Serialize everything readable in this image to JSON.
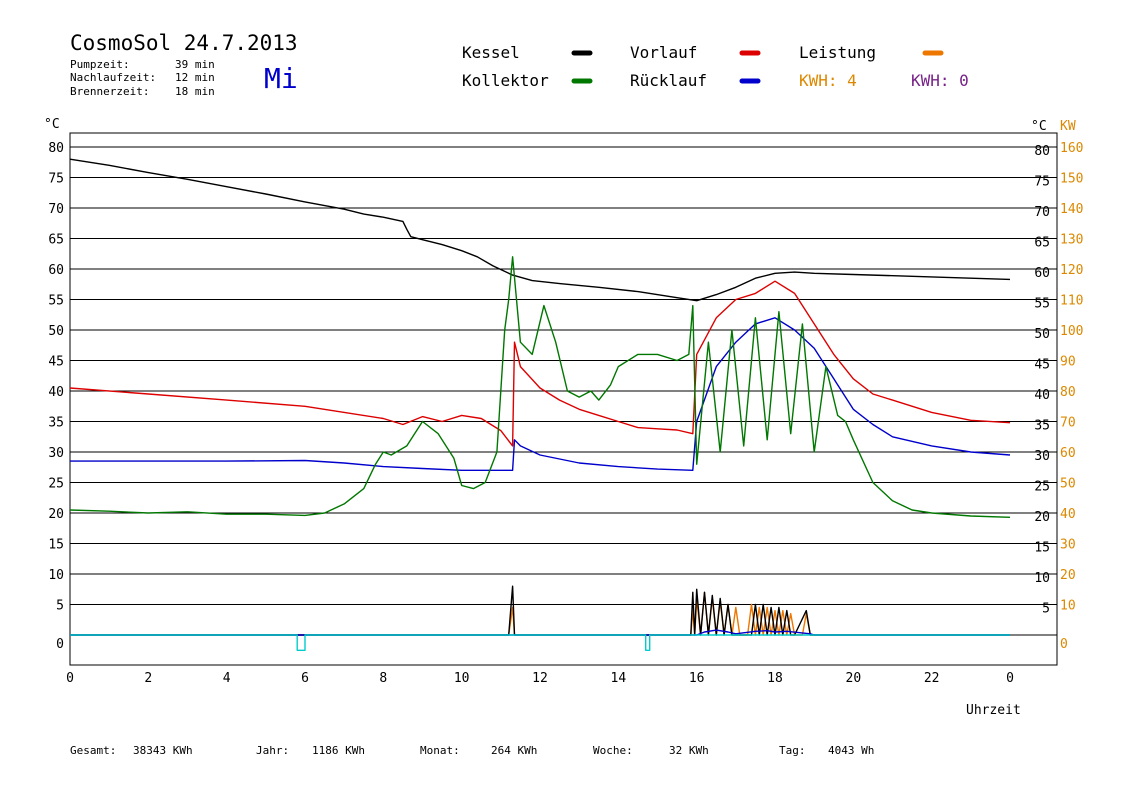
{
  "header": {
    "title": "CosmoSol 24.7.2013",
    "weekday": "Mi",
    "stats": [
      {
        "label": "Pumpzeit:",
        "value": "39 min"
      },
      {
        "label": "Nachlaufzeit:",
        "value": "12 min"
      },
      {
        "label": "Brennerzeit:",
        "value": "18 min"
      }
    ]
  },
  "legend": {
    "items": [
      {
        "label": "Kessel",
        "color": "#000000"
      },
      {
        "label": "Vorlauf",
        "color": "#dd0000"
      },
      {
        "label": "Leistung",
        "color": "#ee7700"
      },
      {
        "label": "Kollektor",
        "color": "#007700"
      },
      {
        "label": "Rücklauf",
        "color": "#0000cc"
      }
    ],
    "kwh": [
      {
        "text": "KWH: 4",
        "color": "#dd8800"
      },
      {
        "text": "KWH: 0",
        "color": "#772288"
      }
    ]
  },
  "footer": [
    {
      "label": "Gesamt:",
      "value": "38343 KWh"
    },
    {
      "label": "Jahr:",
      "value": "1186 KWh"
    },
    {
      "label": "Monat:",
      "value": "264 KWh"
    },
    {
      "label": "Woche:",
      "value": "32 KWh"
    },
    {
      "label": "Tag:",
      "value": "4043 Wh"
    }
  ],
  "chart_data": {
    "type": "line",
    "xlabel": "Uhrzeit",
    "xlim": [
      0,
      24
    ],
    "xticks": [
      "0",
      "2",
      "4",
      "6",
      "8",
      "10",
      "12",
      "14",
      "16",
      "18",
      "20",
      "22",
      "0"
    ],
    "ylabel_left": "°C",
    "ylabel_right": "°C",
    "ylabel_right2": "KW",
    "ylim": [
      -5,
      85
    ],
    "yticks_left": [
      "80",
      "75",
      "70",
      "65",
      "60",
      "55",
      "50",
      "45",
      "40",
      "35",
      "30",
      "25",
      "20",
      "15",
      "10",
      "5",
      "0"
    ],
    "yticks_right": [
      "80",
      "75",
      "70",
      "65",
      "60",
      "55",
      "50",
      "45",
      "40",
      "35",
      "30",
      "25",
      "20",
      "15",
      "10",
      "5"
    ],
    "yticks_right2": [
      "160",
      "150",
      "140",
      "130",
      "120",
      "110",
      "100",
      "90",
      "80",
      "70",
      "60",
      "50",
      "40",
      "30",
      "20",
      "10",
      "0"
    ],
    "grid": true,
    "series": [
      {
        "name": "Kessel",
        "color": "#000000",
        "x": [
          0,
          1,
          2,
          3,
          4,
          5,
          6,
          7,
          7.5,
          8,
          8.5,
          8.6,
          8.7,
          9,
          9.5,
          10,
          10.4,
          10.8,
          11.3,
          11.8,
          12.5,
          13.5,
          14.5,
          15.5,
          16,
          16.5,
          17,
          17.5,
          18,
          18.5,
          19,
          20,
          22,
          24
        ],
        "y": [
          78,
          77,
          75.8,
          74.7,
          73.5,
          72.3,
          71,
          69.8,
          69,
          68.5,
          67.8,
          66.5,
          65.3,
          64.8,
          64,
          63,
          62,
          60.5,
          59,
          58.1,
          57.6,
          57,
          56.3,
          55.3,
          54.8,
          55.8,
          57,
          58.5,
          59.3,
          59.5,
          59.3,
          59.1,
          58.7,
          58.3
        ]
      },
      {
        "name": "Vorlauf",
        "color": "#dd0000",
        "x": [
          0,
          2,
          4,
          6,
          8,
          8.5,
          9,
          9.5,
          10,
          10.5,
          11,
          11.3,
          11.35,
          11.5,
          12,
          12.5,
          13,
          13.5,
          14,
          14.5,
          15,
          15.5,
          15.9,
          16,
          16.5,
          17,
          17.5,
          18,
          18.5,
          19,
          19.5,
          20,
          20.5,
          21,
          22,
          23,
          24
        ],
        "y": [
          40.5,
          39.5,
          38.5,
          37.5,
          35.5,
          34.5,
          35.8,
          35,
          36,
          35.5,
          33.5,
          31,
          48,
          44,
          40.5,
          38.5,
          37,
          36,
          35,
          34,
          33.8,
          33.6,
          33,
          46,
          52,
          55,
          56,
          58,
          56,
          51,
          46,
          42,
          39.5,
          38.5,
          36.5,
          35.2,
          34.8
        ]
      },
      {
        "name": "Rücklauf",
        "color": "#0000cc",
        "x": [
          0,
          2,
          4,
          6,
          7,
          8,
          9,
          10,
          11,
          11.3,
          11.35,
          11.5,
          12,
          13,
          14,
          15,
          15.9,
          16,
          16.5,
          17,
          17.5,
          18,
          18.5,
          19,
          19.5,
          20,
          20.5,
          21,
          22,
          23,
          24
        ],
        "y": [
          28.5,
          28.5,
          28.5,
          28.6,
          28.2,
          27.6,
          27.3,
          27,
          27,
          27,
          32,
          31,
          29.5,
          28.2,
          27.6,
          27.2,
          27,
          35,
          44,
          48,
          51,
          52,
          50,
          47,
          42,
          37,
          34.5,
          32.5,
          31,
          30,
          29.5
        ]
      },
      {
        "name": "Kollektor",
        "color": "#007700",
        "x": [
          0,
          1,
          2,
          3,
          4,
          5,
          6,
          6.5,
          7,
          7.5,
          7.8,
          8,
          8.2,
          8.6,
          9,
          9.4,
          9.8,
          10,
          10.3,
          10.6,
          10.9,
          11.1,
          11.2,
          11.3,
          11.5,
          11.8,
          12.1,
          12.4,
          12.7,
          13,
          13.3,
          13.5,
          13.8,
          14,
          14.5,
          15,
          15.5,
          15.8,
          15.9,
          16,
          16.3,
          16.6,
          16.9,
          17.2,
          17.5,
          17.8,
          18.1,
          18.4,
          18.7,
          19,
          19.3,
          19.6,
          19.8,
          20,
          20.5,
          21,
          21.5,
          22,
          23,
          24
        ],
        "y": [
          20.5,
          20.3,
          20,
          20.2,
          19.8,
          19.8,
          19.6,
          20,
          21.5,
          24,
          28,
          30,
          29.5,
          31,
          35,
          33,
          29,
          24.5,
          24,
          25,
          30,
          50,
          55,
          62,
          48,
          46,
          54,
          48,
          40,
          39,
          40,
          38.5,
          41,
          44,
          46,
          46,
          45,
          46,
          54,
          28,
          48,
          30,
          50,
          31,
          52,
          32,
          53,
          33,
          51,
          30,
          44,
          36,
          35,
          32,
          25,
          22,
          20.5,
          20,
          19.5,
          19.3
        ]
      },
      {
        "name": "Leistung",
        "color": "#ee7700",
        "x": [
          0,
          11.2,
          11.3,
          11.35,
          11.4,
          15.85,
          15.9,
          15.95,
          16,
          16.1,
          16.2,
          16.3,
          16.4,
          16.5,
          16.6,
          16.7,
          16.8,
          16.9,
          17,
          17.1,
          17.2,
          17.3,
          17.4,
          17.5,
          17.6,
          17.7,
          17.8,
          17.9,
          18,
          18.1,
          18.2,
          18.3,
          18.4,
          18.5,
          18.6,
          18.7,
          18.8,
          18.9,
          19,
          24
        ],
        "y": [
          0,
          0,
          4.5,
          0,
          0,
          0,
          4,
          0,
          6,
          0,
          7,
          0,
          6,
          0,
          5.5,
          0,
          5,
          0,
          4.5,
          0,
          0,
          0,
          5,
          0,
          4.5,
          0,
          4.5,
          0,
          4,
          0,
          4,
          0,
          3.5,
          0,
          0,
          0,
          3.5,
          0,
          0,
          0
        ]
      },
      {
        "name": "Pumpe",
        "color": "#000000",
        "x": [
          0,
          11.2,
          11.3,
          11.35,
          11.4,
          15.85,
          15.9,
          15.95,
          16,
          16.1,
          16.2,
          16.3,
          16.4,
          16.5,
          16.6,
          16.7,
          16.8,
          16.9,
          17,
          17.4,
          17.5,
          17.6,
          17.7,
          17.8,
          17.9,
          18,
          18.1,
          18.2,
          18.3,
          18.4,
          18.5,
          18.8,
          18.9,
          19,
          24
        ],
        "y": [
          0,
          0,
          8,
          0,
          0,
          0,
          7,
          0,
          7.5,
          0,
          7,
          0,
          6.5,
          0,
          6,
          0,
          5,
          0,
          0,
          0,
          5,
          0,
          5,
          0,
          4.5,
          0,
          4.5,
          0,
          4,
          0,
          0,
          4,
          0,
          0,
          0
        ]
      },
      {
        "name": "Ruecklauf-Leistung",
        "color": "#0000cc",
        "x": [
          0,
          16,
          16.2,
          16.5,
          16.8,
          17,
          17.5,
          17.8,
          18,
          18.3,
          18.6,
          18.9,
          19,
          24
        ],
        "y": [
          0,
          0,
          0.5,
          0.8,
          0.5,
          0.2,
          0.6,
          0.7,
          0.5,
          0.6,
          0.4,
          0.2,
          0,
          0
        ]
      },
      {
        "name": "Brenner",
        "color": "#00cccc",
        "x": [
          0,
          5.8,
          5.8,
          6.0,
          6.0,
          14.7,
          14.7,
          14.8,
          14.8,
          24
        ],
        "y": [
          0,
          0,
          -2.5,
          -2.5,
          0,
          0,
          -2.5,
          -2.5,
          0,
          0
        ]
      }
    ]
  }
}
